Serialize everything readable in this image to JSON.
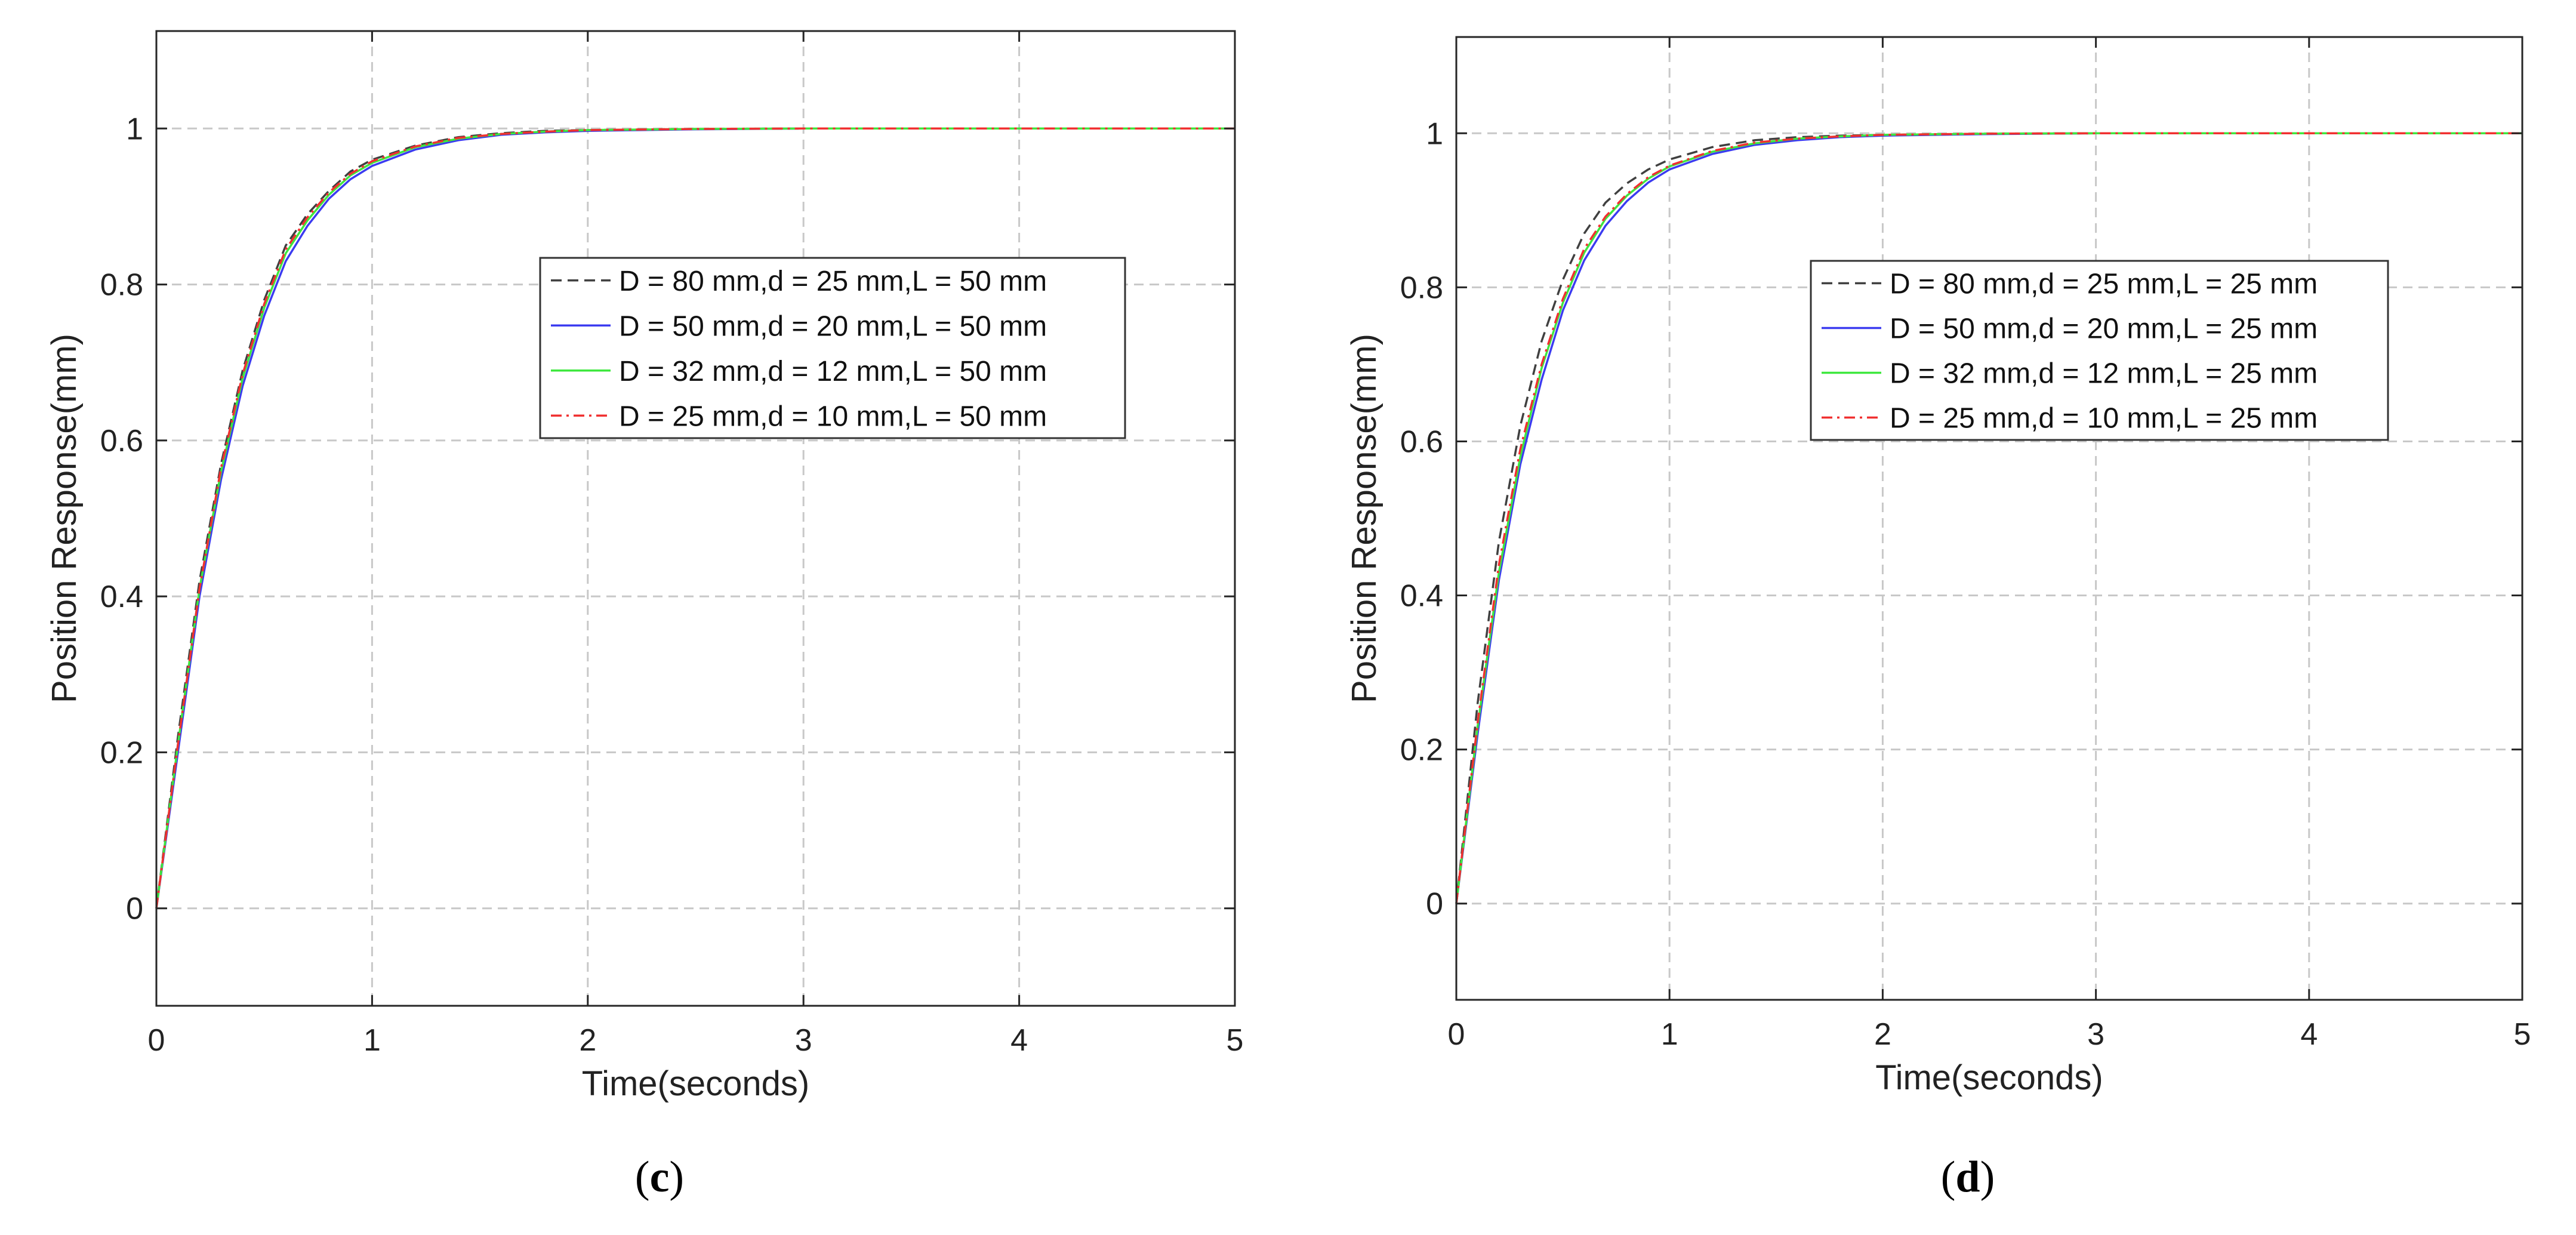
{
  "figure": {
    "panels": [
      {
        "caption_open": "(",
        "caption_letter": "c",
        "caption_close": ")"
      },
      {
        "caption_open": "(",
        "caption_letter": "d",
        "caption_close": ")"
      }
    ]
  },
  "colors": {
    "series": [
      "#404040",
      "#3b3bf0",
      "#3ee83e",
      "#f03030"
    ],
    "grid": "#c8c8c8",
    "axis": "#262626"
  },
  "chart_data": [
    {
      "type": "line",
      "title": "",
      "xlabel": "Time(seconds)",
      "ylabel": "Position Response(mm)",
      "xlim": [
        0,
        5
      ],
      "ylim": [
        -0.125,
        1.125
      ],
      "xticks": [
        0,
        1,
        2,
        3,
        4,
        5
      ],
      "xtick_labels": [
        "0",
        "1",
        "2",
        "3",
        "4",
        "5"
      ],
      "yticks": [
        0,
        0.2,
        0.4,
        0.6,
        0.8,
        1
      ],
      "ytick_labels": [
        "0",
        "0.2",
        "0.4",
        "0.6",
        "0.8",
        "1"
      ],
      "grid": true,
      "legend_position": "center-right",
      "x": [
        0,
        0.1,
        0.2,
        0.3,
        0.4,
        0.5,
        0.6,
        0.7,
        0.8,
        0.9,
        1.0,
        1.2,
        1.4,
        1.6,
        1.8,
        2.0,
        2.5,
        3.0,
        3.5,
        4.0,
        4.5,
        5.0
      ],
      "series": [
        {
          "name": "D = 80 mm,d = 25 mm,L = 50 mm",
          "style": "dashed",
          "values": [
            0,
            0.22,
            0.42,
            0.57,
            0.69,
            0.78,
            0.85,
            0.89,
            0.92,
            0.945,
            0.96,
            0.978,
            0.989,
            0.994,
            0.997,
            0.998,
            0.9995,
            1,
            1,
            1,
            1,
            1
          ]
        },
        {
          "name": "D = 50 mm,d = 20 mm,L = 50 mm",
          "style": "solid",
          "values": [
            0,
            0.2,
            0.4,
            0.55,
            0.67,
            0.76,
            0.83,
            0.875,
            0.91,
            0.935,
            0.952,
            0.973,
            0.985,
            0.992,
            0.995,
            0.997,
            0.999,
            1,
            1,
            1,
            1,
            1
          ]
        },
        {
          "name": "D = 32 mm,d = 12 mm,L = 50 mm",
          "style": "solid",
          "values": [
            0,
            0.21,
            0.41,
            0.56,
            0.68,
            0.77,
            0.84,
            0.882,
            0.915,
            0.94,
            0.956,
            0.976,
            0.987,
            0.993,
            0.996,
            0.998,
            0.9995,
            1,
            1,
            1,
            1,
            1
          ]
        },
        {
          "name": "D = 25 mm,d = 10 mm,L = 50 mm",
          "style": "dashdot",
          "values": [
            0,
            0.21,
            0.41,
            0.565,
            0.685,
            0.775,
            0.845,
            0.886,
            0.918,
            0.942,
            0.958,
            0.977,
            0.988,
            0.993,
            0.996,
            0.998,
            0.9995,
            1,
            1,
            1,
            1,
            1
          ]
        }
      ]
    },
    {
      "type": "line",
      "title": "",
      "xlabel": "Time(seconds)",
      "ylabel": "Position Response(mm)",
      "xlim": [
        0,
        5
      ],
      "ylim": [
        -0.125,
        1.125
      ],
      "xticks": [
        0,
        1,
        2,
        3,
        4,
        5
      ],
      "xtick_labels": [
        "0",
        "1",
        "2",
        "3",
        "4",
        "5"
      ],
      "yticks": [
        0,
        0.2,
        0.4,
        0.6,
        0.8,
        1
      ],
      "ytick_labels": [
        "0",
        "0.2",
        "0.4",
        "0.6",
        "0.8",
        "1"
      ],
      "grid": true,
      "legend_position": "center-right",
      "x": [
        0,
        0.1,
        0.2,
        0.3,
        0.4,
        0.5,
        0.6,
        0.7,
        0.8,
        0.9,
        1.0,
        1.2,
        1.4,
        1.6,
        1.8,
        2.0,
        2.5,
        3.0,
        3.5,
        4.0,
        4.5,
        5.0
      ],
      "series": [
        {
          "name": "D = 80 mm,d = 25 mm,L = 25 mm",
          "style": "dashed",
          "values": [
            0,
            0.26,
            0.47,
            0.62,
            0.73,
            0.81,
            0.87,
            0.91,
            0.935,
            0.953,
            0.966,
            0.982,
            0.991,
            0.995,
            0.997,
            0.998,
            0.9995,
            1,
            1,
            1,
            1,
            1
          ]
        },
        {
          "name": "D = 50 mm,d = 20 mm,L = 25 mm",
          "style": "solid",
          "values": [
            0,
            0.22,
            0.42,
            0.57,
            0.68,
            0.77,
            0.835,
            0.88,
            0.912,
            0.936,
            0.953,
            0.973,
            0.985,
            0.991,
            0.995,
            0.997,
            0.999,
            1,
            1,
            1,
            1,
            1
          ]
        },
        {
          "name": "D = 32 mm,d = 12 mm,L = 25 mm",
          "style": "solid",
          "values": [
            0,
            0.23,
            0.43,
            0.58,
            0.695,
            0.78,
            0.845,
            0.889,
            0.919,
            0.941,
            0.957,
            0.976,
            0.987,
            0.993,
            0.996,
            0.998,
            0.9995,
            1,
            1,
            1,
            1,
            1
          ]
        },
        {
          "name": "D = 25 mm,d = 10 mm,L = 25 mm",
          "style": "dashdot",
          "values": [
            0,
            0.235,
            0.44,
            0.59,
            0.7,
            0.785,
            0.85,
            0.892,
            0.921,
            0.943,
            0.958,
            0.977,
            0.988,
            0.993,
            0.996,
            0.998,
            0.9995,
            1,
            1,
            1,
            1,
            1
          ]
        }
      ]
    }
  ]
}
